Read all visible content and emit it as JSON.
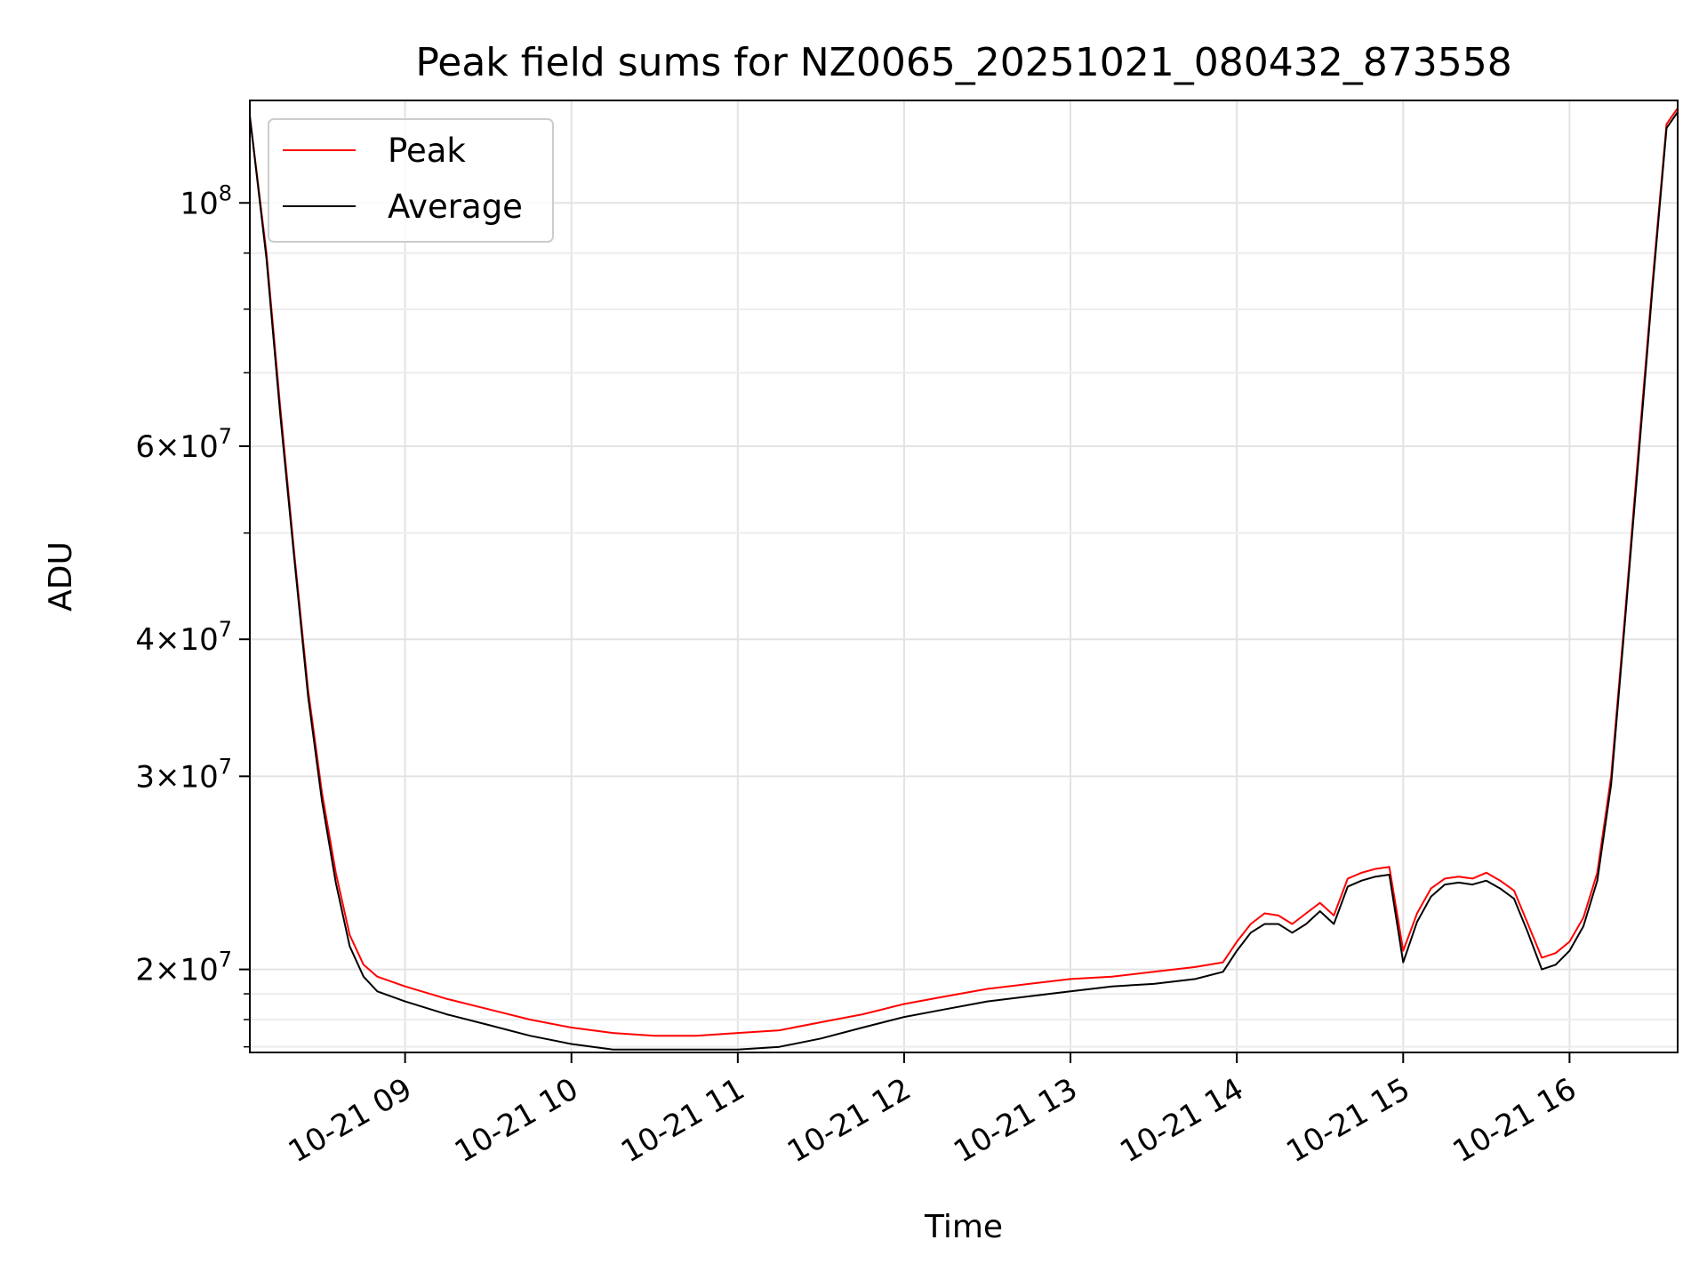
{
  "chart_data": {
    "type": "line",
    "title": "Peak field sums for NZ0065_20251021_080432_873558",
    "xlabel": "Time",
    "ylabel": "ADU",
    "yscale": "log",
    "xlim": [
      "2025-10-21 08:04",
      "2025-10-21 16:39"
    ],
    "ylim": [
      16800000,
      124000000
    ],
    "grid": true,
    "legend": {
      "position": "top-left",
      "entries": [
        "Peak",
        "Average"
      ]
    },
    "x_ticks": [
      "10-21 09",
      "10-21 10",
      "10-21 11",
      "10-21 12",
      "10-21 13",
      "10-21 14",
      "10-21 15",
      "10-21 16"
    ],
    "y_ticks": [
      {
        "value": 20000000,
        "mantissa": "2",
        "exp": "7"
      },
      {
        "value": 30000000,
        "mantissa": "3",
        "exp": "7"
      },
      {
        "value": 40000000,
        "mantissa": "4",
        "exp": "7"
      },
      {
        "value": 60000000,
        "mantissa": "6",
        "exp": "7"
      },
      {
        "value": 100000000,
        "mantissa": "",
        "exp": "8"
      }
    ],
    "x": [
      "2025-10-21 08:04",
      "2025-10-21 08:10",
      "2025-10-21 08:15",
      "2025-10-21 08:20",
      "2025-10-21 08:25",
      "2025-10-21 08:30",
      "2025-10-21 08:35",
      "2025-10-21 08:40",
      "2025-10-21 08:45",
      "2025-10-21 08:50",
      "2025-10-21 09:00",
      "2025-10-21 09:15",
      "2025-10-21 09:30",
      "2025-10-21 09:45",
      "2025-10-21 10:00",
      "2025-10-21 10:15",
      "2025-10-21 10:30",
      "2025-10-21 10:45",
      "2025-10-21 11:00",
      "2025-10-21 11:15",
      "2025-10-21 11:30",
      "2025-10-21 11:45",
      "2025-10-21 12:00",
      "2025-10-21 12:15",
      "2025-10-21 12:30",
      "2025-10-21 12:45",
      "2025-10-21 13:00",
      "2025-10-21 13:15",
      "2025-10-21 13:30",
      "2025-10-21 13:45",
      "2025-10-21 13:55",
      "2025-10-21 14:00",
      "2025-10-21 14:05",
      "2025-10-21 14:10",
      "2025-10-21 14:15",
      "2025-10-21 14:20",
      "2025-10-21 14:25",
      "2025-10-21 14:30",
      "2025-10-21 14:35",
      "2025-10-21 14:40",
      "2025-10-21 14:45",
      "2025-10-21 14:50",
      "2025-10-21 14:55",
      "2025-10-21 15:00",
      "2025-10-21 15:05",
      "2025-10-21 15:10",
      "2025-10-21 15:15",
      "2025-10-21 15:20",
      "2025-10-21 15:25",
      "2025-10-21 15:30",
      "2025-10-21 15:35",
      "2025-10-21 15:40",
      "2025-10-21 15:45",
      "2025-10-21 15:50",
      "2025-10-21 15:55",
      "2025-10-21 16:00",
      "2025-10-21 16:05",
      "2025-10-21 16:10",
      "2025-10-21 16:15",
      "2025-10-21 16:20",
      "2025-10-21 16:25",
      "2025-10-21 16:30",
      "2025-10-21 16:35",
      "2025-10-21 16:39"
    ],
    "series": [
      {
        "name": "Peak",
        "color": "#ff0000",
        "values": [
          120000000,
          90000000,
          65000000,
          48000000,
          36000000,
          29000000,
          24500000,
          21500000,
          20200000,
          19700000,
          19300000,
          18800000,
          18400000,
          18000000,
          17700000,
          17500000,
          17400000,
          17400000,
          17500000,
          17600000,
          17900000,
          18200000,
          18600000,
          18900000,
          19200000,
          19400000,
          19600000,
          19700000,
          19900000,
          20100000,
          20300000,
          21200000,
          22000000,
          22500000,
          22400000,
          22000000,
          22500000,
          23000000,
          22400000,
          24200000,
          24500000,
          24700000,
          24800000,
          20800000,
          22500000,
          23700000,
          24200000,
          24300000,
          24200000,
          24500000,
          24100000,
          23600000,
          22000000,
          20500000,
          20700000,
          21200000,
          22300000,
          24500000,
          30000000,
          42000000,
          60000000,
          85000000,
          118000000,
          122000000
        ]
      },
      {
        "name": "Average",
        "color": "#000000",
        "values": [
          120000000,
          89000000,
          64000000,
          47500000,
          35500000,
          28500000,
          24000000,
          21000000,
          19700000,
          19100000,
          18700000,
          18200000,
          17800000,
          17400000,
          17100000,
          16900000,
          16900000,
          16900000,
          16900000,
          17000000,
          17300000,
          17700000,
          18100000,
          18400000,
          18700000,
          18900000,
          19100000,
          19300000,
          19400000,
          19600000,
          19900000,
          20800000,
          21600000,
          22000000,
          22000000,
          21600000,
          22000000,
          22600000,
          22000000,
          23800000,
          24100000,
          24300000,
          24400000,
          20300000,
          22100000,
          23300000,
          23900000,
          24000000,
          23900000,
          24100000,
          23700000,
          23200000,
          21600000,
          20000000,
          20200000,
          20800000,
          21900000,
          24100000,
          29500000,
          41500000,
          59000000,
          84000000,
          117000000,
          121000000
        ]
      }
    ]
  }
}
